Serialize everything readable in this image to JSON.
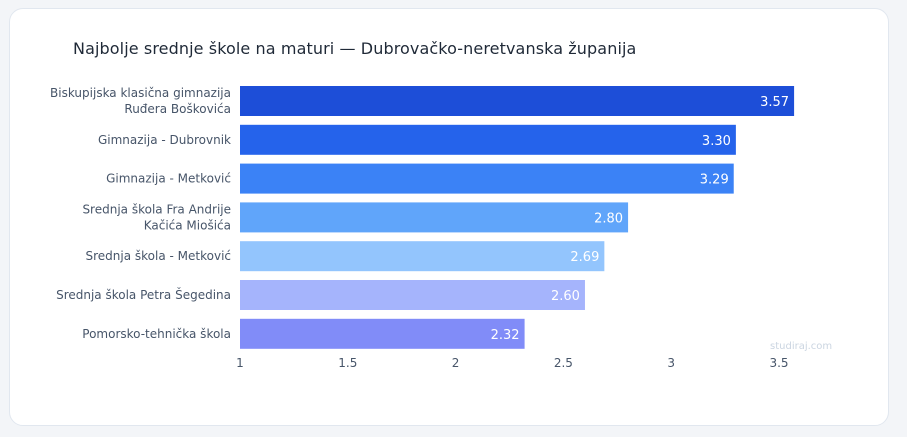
{
  "chart_data": {
    "type": "bar",
    "orientation": "horizontal",
    "title": "Najbolje srednje škole na maturi — Dubrovačko-neretvanska županija",
    "xlabel": "",
    "ylabel": "",
    "categories": [
      [
        "Biskupijska klasična gimnazija",
        "Ruđera Boškovića"
      ],
      [
        "Gimnazija - Dubrovnik"
      ],
      [
        "Gimnazija - Metković"
      ],
      [
        "Srednja škola Fra Andrije",
        "Kačića Miošića"
      ],
      [
        "Srednja škola - Metković"
      ],
      [
        "Srednja škola Petra Šegedina"
      ],
      [
        "Pomorsko-tehnička škola"
      ]
    ],
    "values": [
      3.57,
      3.3,
      3.29,
      2.8,
      2.69,
      2.6,
      2.32
    ],
    "value_labels": [
      "3.57",
      "3.30",
      "3.29",
      "2.80",
      "2.69",
      "2.60",
      "2.32"
    ],
    "bar_colors": [
      "#1d4ed8",
      "#2563eb",
      "#3b82f6",
      "#60a5fa",
      "#93c5fd",
      "#a5b4fc",
      "#818cf8"
    ],
    "xlim": [
      1,
      3.8
    ],
    "xticks": [
      1,
      1.5,
      2,
      2.5,
      3,
      3.5
    ],
    "xtick_labels": [
      "1",
      "1.5",
      "2",
      "2.5",
      "3",
      "3.5"
    ],
    "grid": false,
    "legend": false
  },
  "watermark": "studiraj.com"
}
